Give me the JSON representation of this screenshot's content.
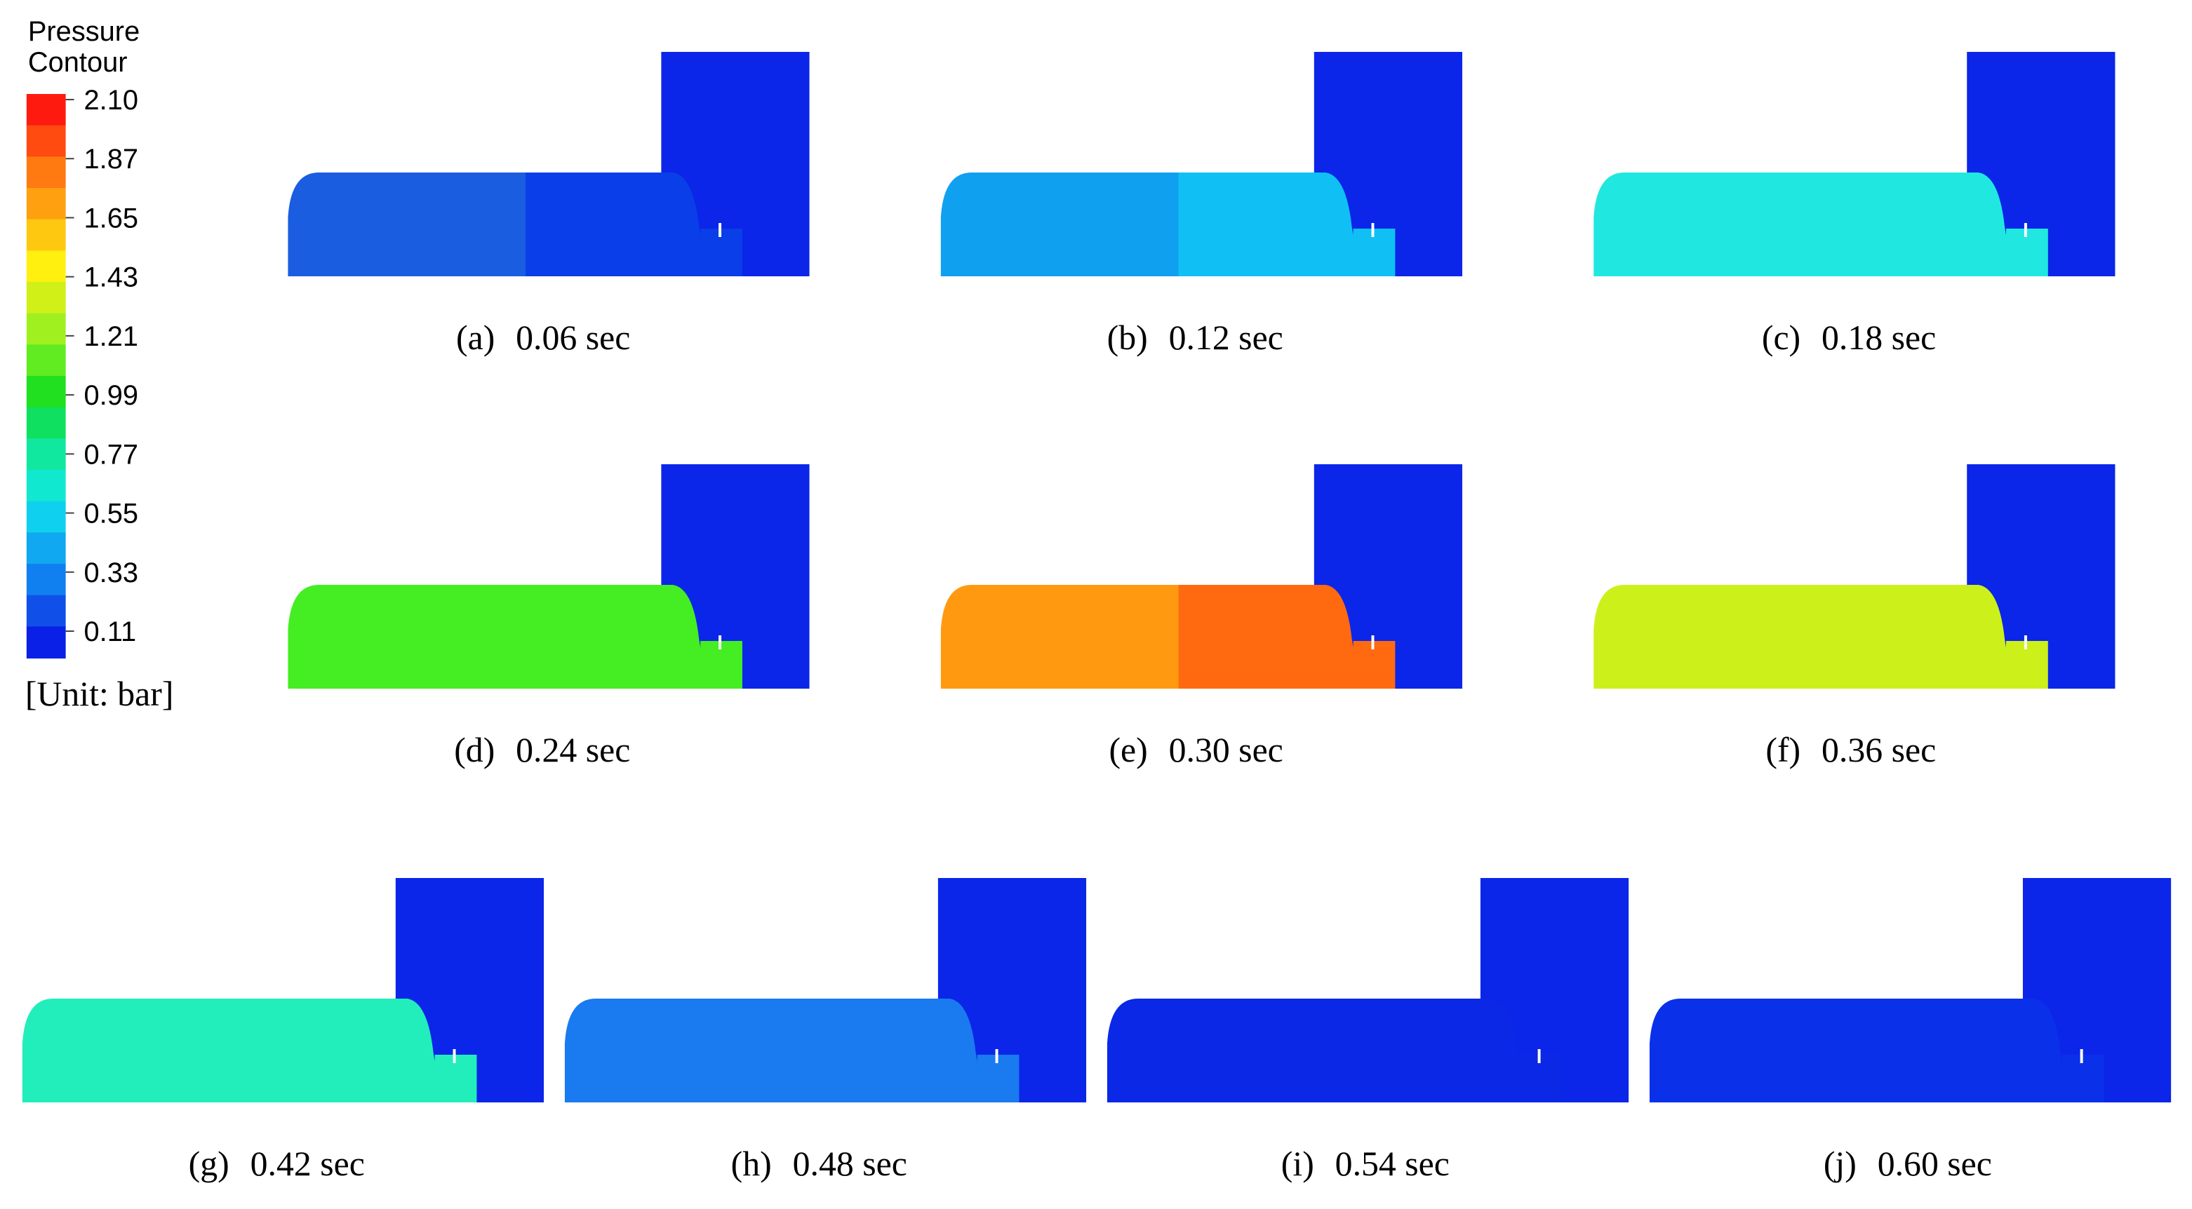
{
  "legend": {
    "title": [
      "Pressure",
      "Contour"
    ],
    "ticks": [
      "2.10",
      "1.87",
      "1.65",
      "1.43",
      "1.21",
      "0.99",
      "0.77",
      "0.55",
      "0.33",
      "0.11"
    ],
    "unit": "[Unit: bar]"
  },
  "panels": [
    {
      "label": "(a)",
      "time": "0.06 sec"
    },
    {
      "label": "(b)",
      "time": "0.12 sec"
    },
    {
      "label": "(c)",
      "time": "0.18 sec"
    },
    {
      "label": "(d)",
      "time": "0.24 sec"
    },
    {
      "label": "(e)",
      "time": "0.30 sec"
    },
    {
      "label": "(f)",
      "time": "0.36 sec"
    },
    {
      "label": "(g)",
      "time": "0.42 sec"
    },
    {
      "label": "(h)",
      "time": "0.48 sec"
    },
    {
      "label": "(i)",
      "time": "0.54 sec"
    },
    {
      "label": "(j)",
      "time": "0.60 sec"
    }
  ]
}
